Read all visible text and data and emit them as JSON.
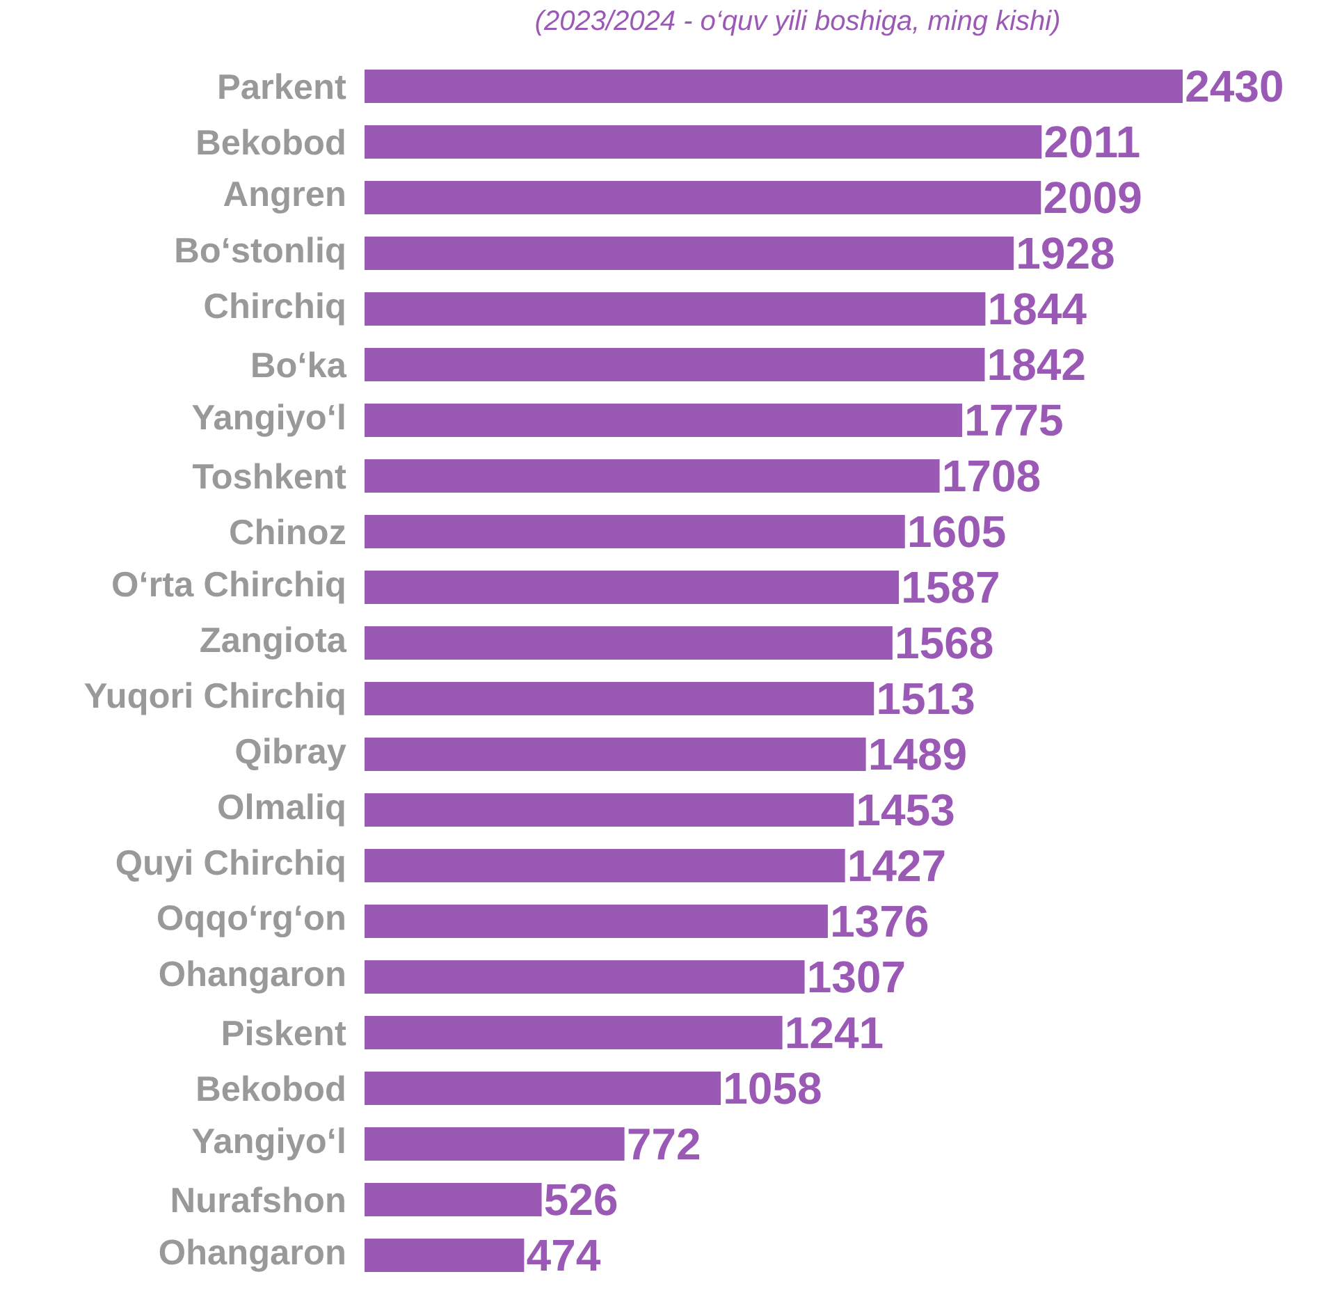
{
  "chart_data": {
    "type": "bar",
    "orientation": "horizontal",
    "subtitle": "(2023/2024 - o‘quv yili boshiga, ming kishi)",
    "categories": [
      "Parkent",
      "Bekobod",
      "Angren",
      "Bo‘stonliq",
      "Chirchiq",
      "Bo‘ka",
      "Yangiyo‘l",
      "Toshkent",
      "Chinoz",
      "O‘rta Chirchiq",
      "Zangiota",
      "Yuqori Chirchiq",
      "Qibray",
      "Olmaliq",
      "Quyi Chirchiq",
      "Oqqo‘rg‘on",
      "Ohangaron",
      "Piskent",
      "Bekobod",
      "Yangiyo‘l",
      "Nurafshon",
      "Ohangaron"
    ],
    "values": [
      2430,
      2011,
      2009,
      1928,
      1844,
      1842,
      1775,
      1708,
      1605,
      1587,
      1568,
      1513,
      1489,
      1453,
      1427,
      1376,
      1307,
      1241,
      1058,
      772,
      526,
      474
    ],
    "color": "#9b59b6",
    "data_labels": true
  }
}
